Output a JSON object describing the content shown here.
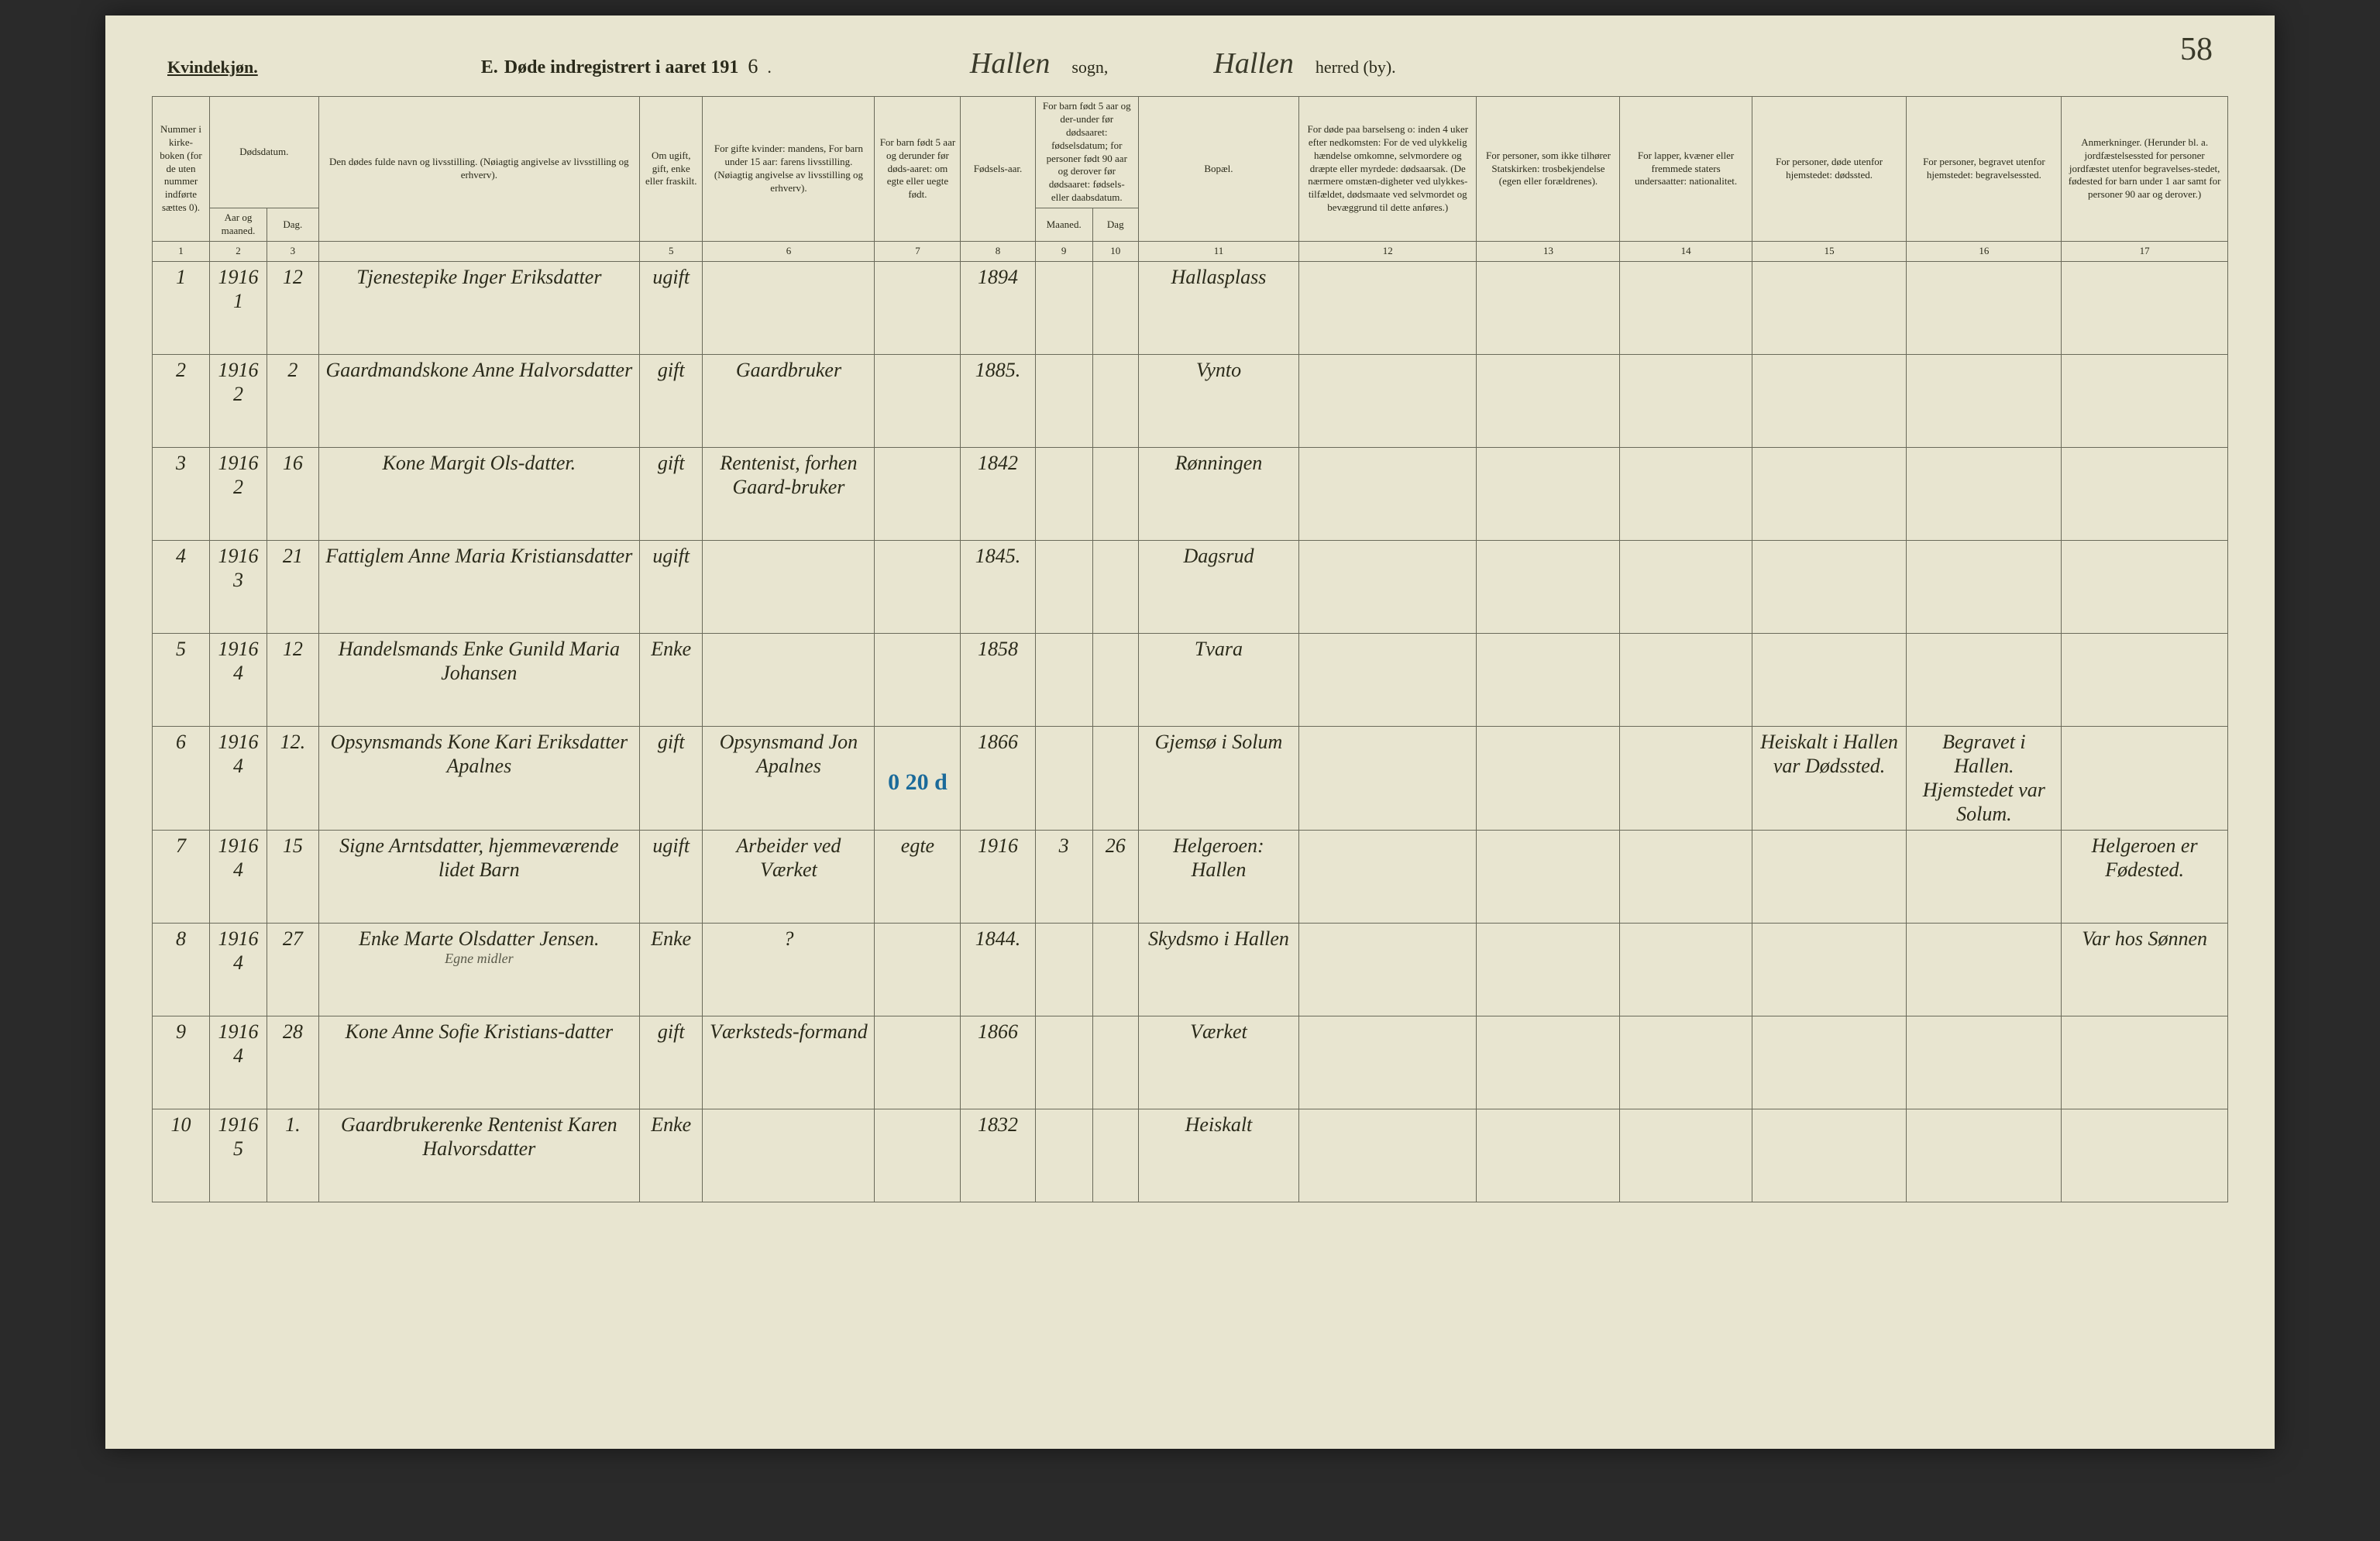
{
  "page_corner_number": "58",
  "header": {
    "gender_label": "Kvindekjøn.",
    "title_prefix": "E.",
    "title_text": "Døde indregistrert i aaret 191",
    "year_suffix": "6",
    "period": ".",
    "sogn_value": "Hallen",
    "sogn_label": "sogn,",
    "herred_value": "Hallen",
    "herred_label": "herred (by)."
  },
  "columns": {
    "c1": "Nummer i kirke-boken (for de uten nummer indførte sættes 0).",
    "c2_top": "Dødsdatum.",
    "c2a": "Aar og maaned.",
    "c2b": "Dag.",
    "c4": "Den dødes fulde navn og livsstilling. (Nøiagtig angivelse av livsstilling og erhverv).",
    "c5": "Om ugift, gift, enke eller fraskilt.",
    "c6": "For gifte kvinder: mandens, For barn under 15 aar: farens livsstilling. (Nøiagtig angivelse av livsstilling og erhverv).",
    "c7": "For barn født 5 aar og derunder før døds-aaret: om egte eller uegte født.",
    "c8": "Fødsels-aar.",
    "c9_top": "For barn født 5 aar og der-under før dødsaaret: fødselsdatum; for personer født 90 aar og derover før dødsaaret: fødsels- eller daabsdatum.",
    "c9a": "Maaned.",
    "c9b": "Dag",
    "c11": "Bopæl.",
    "c12": "For døde paa barselseng o: inden 4 uker efter nedkomsten: For de ved ulykkelig hændelse omkomne, selvmordere og dræpte eller myrdede: dødsaarsak. (De nærmere omstæn-digheter ved ulykkes-tilfældet, dødsmaate ved selvmordet og bevæggrund til dette anføres.)",
    "c13": "For personer, som ikke tilhører Statskirken: trosbekjendelse (egen eller forældrenes).",
    "c14": "For lapper, kvæner eller fremmede staters undersaatter: nationalitet.",
    "c15": "For personer, døde utenfor hjemstedet: dødssted.",
    "c16": "For personer, begravet utenfor hjemstedet: begravelsessted.",
    "c17": "Anmerkninger. (Herunder bl. a. jordfæstelsessted for personer jordfæstet utenfor begravelses-stedet, fødested for barn under 1 aar samt for personer 90 aar og derover.)"
  },
  "colnums": [
    "1",
    "2",
    "3",
    "",
    "5",
    "6",
    "7",
    "8",
    "9",
    "10",
    "11",
    "12",
    "13",
    "14",
    "15",
    "16",
    "17"
  ],
  "rows": [
    {
      "num": "1",
      "year_month": "1916 1",
      "day": "12",
      "name": "Tjenestepike Inger Eriksdatter",
      "status": "ugift",
      "husband": "",
      "child5": "",
      "birth": "1894",
      "bm": "",
      "bd": "",
      "bopael": "Hallasplass",
      "cause": "",
      "church": "",
      "national": "",
      "deathplace": "",
      "burial": "",
      "remarks": ""
    },
    {
      "num": "2",
      "year_month": "1916 2",
      "day": "2",
      "name": "Gaardmandskone Anne Halvorsdatter",
      "status": "gift",
      "husband": "Gaardbruker",
      "child5": "",
      "birth": "1885.",
      "bm": "",
      "bd": "",
      "bopael": "Vynto",
      "cause": "",
      "church": "",
      "national": "",
      "deathplace": "",
      "burial": "",
      "remarks": ""
    },
    {
      "num": "3",
      "year_month": "1916 2",
      "day": "16",
      "name": "Kone Margit Ols-datter.",
      "status": "gift",
      "husband": "Rentenist, forhen Gaard-bruker",
      "child5": "",
      "birth": "1842",
      "bm": "",
      "bd": "",
      "bopael": "Rønningen",
      "cause": "",
      "church": "",
      "national": "",
      "deathplace": "",
      "burial": "",
      "remarks": ""
    },
    {
      "num": "4",
      "year_month": "1916 3",
      "day": "21",
      "name": "Fattiglem Anne Maria Kristiansdatter",
      "status": "ugift",
      "husband": "",
      "child5": "",
      "birth": "1845.",
      "bm": "",
      "bd": "",
      "bopael": "Dagsrud",
      "cause": "",
      "church": "",
      "national": "",
      "deathplace": "",
      "burial": "",
      "remarks": ""
    },
    {
      "num": "5",
      "year_month": "1916 4",
      "day": "12",
      "name": "Handelsmands Enke Gunild Maria Johansen",
      "status": "Enke",
      "husband": "",
      "child5": "",
      "birth": "1858",
      "bm": "",
      "bd": "",
      "bopael": "Tvara",
      "cause": "",
      "church": "",
      "national": "",
      "deathplace": "",
      "burial": "",
      "remarks": ""
    },
    {
      "num": "6",
      "year_month": "1916 4",
      "day": "12.",
      "name": "Opsynsmands Kone Kari Eriksdatter Apalnes",
      "status": "gift",
      "husband": "Opsynsmand Jon Apalnes",
      "child5": "",
      "birth": "1866",
      "bm": "",
      "bd": "",
      "bopael": "Gjemsø i Solum",
      "cause": "",
      "church": "",
      "national": "",
      "deathplace": "Heiskalt i Hallen var Dødssted.",
      "burial": "Begravet i Hallen. Hjemstedet var Solum.",
      "remarks": "",
      "blue": "0 20 d"
    },
    {
      "num": "7",
      "year_month": "1916 4",
      "day": "15",
      "name": "Signe Arntsdatter, hjemmeværende lidet Barn",
      "status": "ugift",
      "husband": "Arbeider ved Værket",
      "child5": "egte",
      "birth": "1916",
      "bm": "3",
      "bd": "26",
      "bopael": "Helgeroen: Hallen",
      "cause": "",
      "church": "",
      "national": "",
      "deathplace": "",
      "burial": "",
      "remarks": "Helgeroen er Fødested."
    },
    {
      "num": "8",
      "year_month": "1916 4",
      "day": "27",
      "name": "Enke Marte Olsdatter Jensen.",
      "name_note": "Egne midler",
      "status": "Enke",
      "husband": "?",
      "child5": "",
      "birth": "1844.",
      "bm": "",
      "bd": "",
      "bopael": "Skydsmo i Hallen",
      "cause": "",
      "church": "",
      "national": "",
      "deathplace": "",
      "burial": "",
      "remarks": "Var hos Sønnen"
    },
    {
      "num": "9",
      "year_month": "1916 4",
      "day": "28",
      "name": "Kone Anne Sofie Kristians-datter",
      "status": "gift",
      "husband": "Værksteds-formand",
      "child5": "",
      "birth": "1866",
      "bm": "",
      "bd": "",
      "bopael": "Værket",
      "cause": "",
      "church": "",
      "national": "",
      "deathplace": "",
      "burial": "",
      "remarks": ""
    },
    {
      "num": "10",
      "year_month": "1916 5",
      "day": "1.",
      "name": "Gaardbrukerenke Rentenist Karen Halvorsdatter",
      "status": "Enke",
      "husband": "",
      "child5": "",
      "birth": "1832",
      "bm": "",
      "bd": "",
      "bopael": "Heiskalt",
      "cause": "",
      "church": "",
      "national": "",
      "deathplace": "",
      "burial": "",
      "remarks": ""
    }
  ]
}
